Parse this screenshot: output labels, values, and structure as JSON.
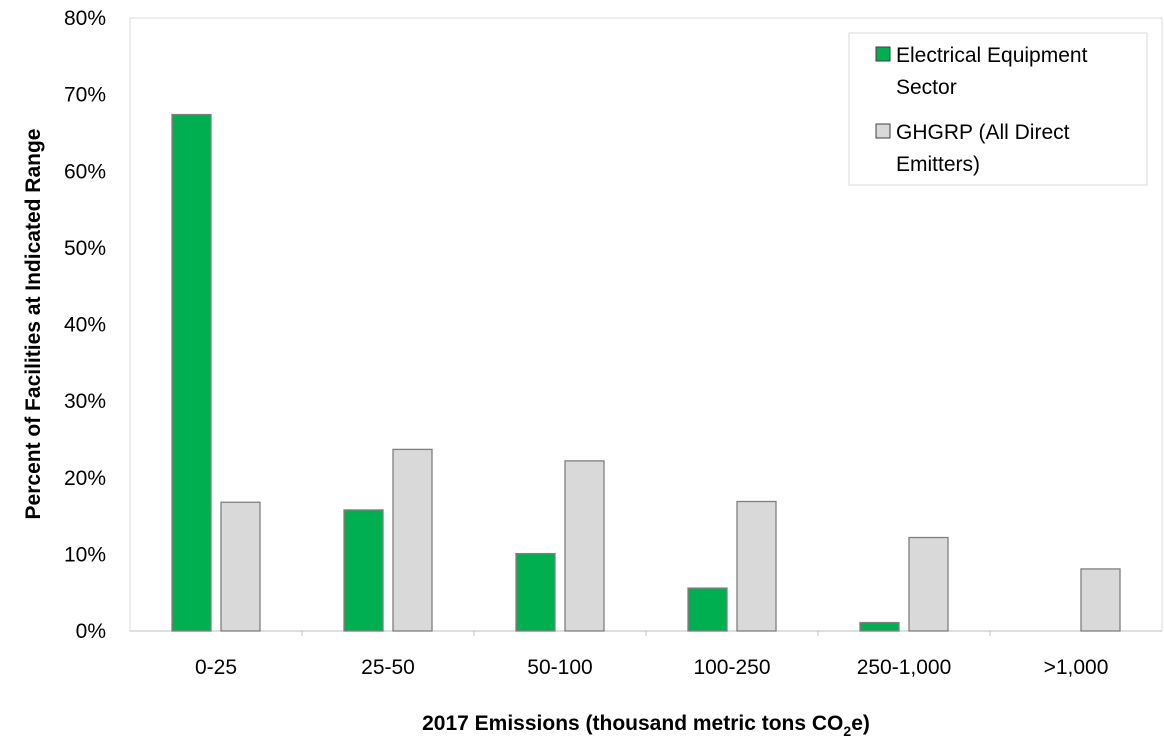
{
  "chart_data": {
    "type": "bar",
    "categories": [
      "0-25",
      "25-50",
      "50-100",
      "100-250",
      "250-1,000",
      ">1,000"
    ],
    "series": [
      {
        "name": [
          "Electrical Equipment",
          "Sector"
        ],
        "color": "#00b050",
        "values": [
          67.4,
          15.8,
          10.1,
          5.6,
          1.1,
          0
        ]
      },
      {
        "name": [
          "GHGRP (All Direct",
          "Emitters)"
        ],
        "color": "#d9d9d9",
        "values": [
          16.8,
          23.7,
          22.2,
          16.9,
          12.2,
          8.1
        ]
      }
    ],
    "ylim": [
      0,
      80
    ],
    "yticks": [
      "0%",
      "10%",
      "20%",
      "30%",
      "40%",
      "50%",
      "60%",
      "70%",
      "80%"
    ],
    "ylabel": "Percent of Facilities at Indicated Range",
    "xlabel": {
      "main": "2017 Emissions (thousand metric tons CO",
      "subscript": "2",
      "suffix": "e)"
    },
    "legend_position": "top-right",
    "grid": false
  }
}
